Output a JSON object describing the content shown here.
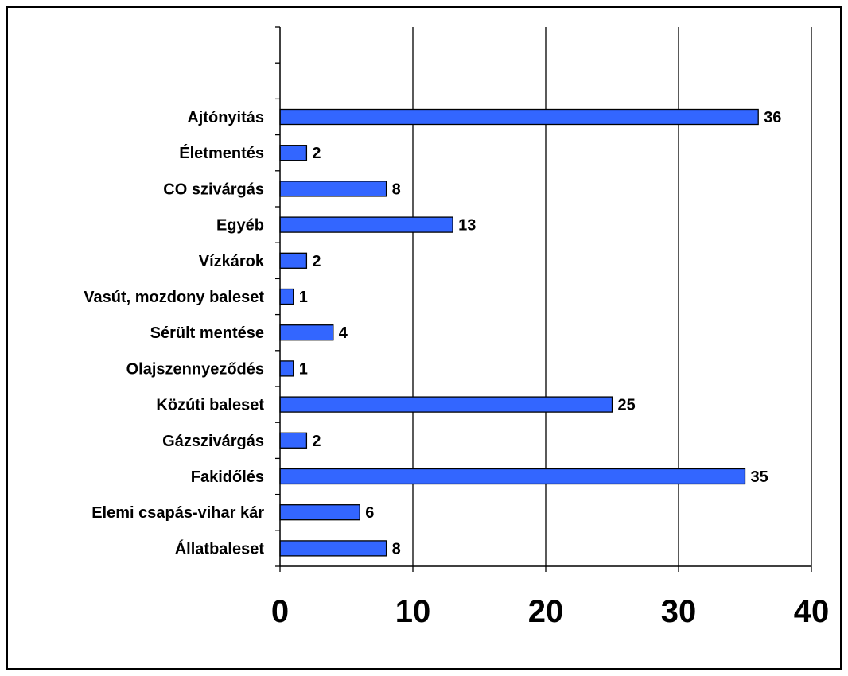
{
  "chart_data": {
    "type": "bar",
    "orientation": "horizontal",
    "categories": [
      "Ajtónyitás",
      "Életmentés",
      "CO szivárgás",
      "Egyéb",
      "Vízkárok",
      "Vasút, mozdony baleset",
      "Sérült mentése",
      "Olajszennyeződés",
      "Közúti baleset",
      "Gázszivárgás",
      "Fakidőlés",
      "Elemi csapás-vihar kár",
      "Állatbaleset"
    ],
    "values": [
      36,
      2,
      8,
      13,
      2,
      1,
      4,
      1,
      25,
      2,
      35,
      6,
      8
    ],
    "empty_slots_top": 2,
    "xlim": [
      0,
      40
    ],
    "xticks": [
      "0",
      "10",
      "20",
      "30",
      "40"
    ],
    "grid": "vertical",
    "bar_color": "#3366ff",
    "legend": "none"
  }
}
